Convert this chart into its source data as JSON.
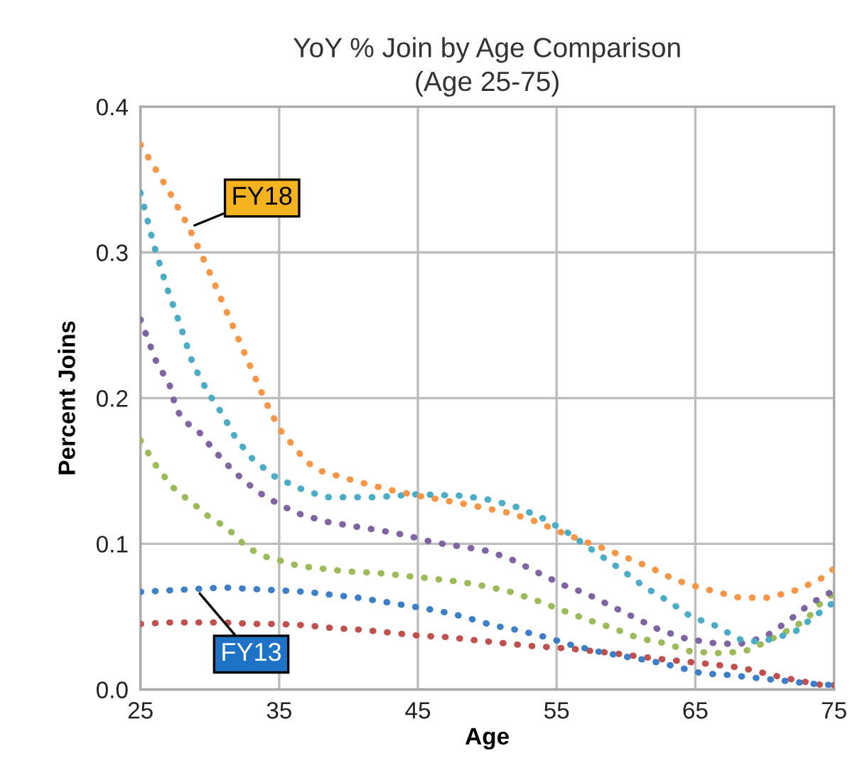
{
  "chart_data": {
    "type": "line",
    "title": "YoY % Join by Age Comparison\n(Age 25-75)",
    "xlabel": "Age",
    "ylabel": "Percent Joins",
    "xlim": [
      25,
      75
    ],
    "xticks": [
      25,
      35,
      45,
      55,
      65,
      75
    ],
    "ylim": [
      0,
      0.4
    ],
    "yticks": [
      {
        "value": 0,
        "label": "0.0"
      },
      0.1,
      0.2,
      0.3,
      0.4
    ],
    "grid": true,
    "legend": false,
    "marker": "none",
    "line_style": "dotted",
    "series": [
      {
        "color": "#c0504d",
        "x": [
          25,
          27,
          29,
          31,
          33,
          35,
          37,
          39,
          41,
          43,
          45,
          47,
          49,
          50,
          53,
          56,
          59,
          62.4,
          65.5,
          68.3,
          71.4,
          74.2,
          75
        ],
        "values": [
          0.045,
          0.046,
          0.046,
          0.046,
          0.045,
          0.045,
          0.044,
          0.042,
          0.041,
          0.039,
          0.037,
          0.036,
          0.034,
          0.033,
          0.03,
          0.028,
          0.025,
          0.021,
          0.018,
          0.015,
          0.008,
          0.003,
          0.003
        ]
      },
      {
        "name": "FY13",
        "color": "#3c7fc8",
        "x": [
          25,
          27,
          29,
          31,
          33,
          35,
          37,
          38.8,
          40.7,
          42.7,
          44.6,
          46.5,
          48.3,
          50.4,
          52.1,
          54.2,
          55.9,
          58,
          59.7,
          61.6,
          63.5,
          65.5,
          67.4,
          69.3,
          71.4,
          73.3,
          75
        ],
        "values": [
          0.067,
          0.068,
          0.069,
          0.07,
          0.069,
          0.068,
          0.067,
          0.065,
          0.063,
          0.06,
          0.057,
          0.054,
          0.05,
          0.044,
          0.041,
          0.036,
          0.031,
          0.026,
          0.023,
          0.02,
          0.016,
          0.011,
          0.01,
          0.008,
          0.006,
          0.004,
          0.003
        ]
      },
      {
        "color": "#9bbb59",
        "x": [
          25,
          26.1,
          27.3,
          28.2,
          29,
          30,
          30.9,
          31.7,
          32.6,
          33.4,
          34.3,
          35.3,
          36.3,
          38,
          40,
          42.1,
          44.1,
          46.1,
          48,
          49.8,
          51.7,
          53.6,
          55.5,
          57.2,
          59.1,
          61,
          62.7,
          64.7,
          66.6,
          68.5,
          69.5,
          71.2,
          73,
          74.2,
          75
        ],
        "values": [
          0.171,
          0.154,
          0.139,
          0.132,
          0.126,
          0.118,
          0.113,
          0.107,
          0.098,
          0.094,
          0.09,
          0.088,
          0.085,
          0.083,
          0.081,
          0.08,
          0.078,
          0.076,
          0.074,
          0.071,
          0.067,
          0.061,
          0.054,
          0.048,
          0.042,
          0.035,
          0.032,
          0.026,
          0.025,
          0.026,
          0.03,
          0.038,
          0.048,
          0.061,
          0.066
        ]
      },
      {
        "color": "#8064a2",
        "x": [
          25,
          26.1,
          27.1,
          27.6,
          28.2,
          29.2,
          30.4,
          31.8,
          33.4,
          35,
          36.6,
          38.5,
          40.4,
          42.4,
          44.1,
          46.1,
          48.2,
          50.1,
          51.8,
          53.7,
          55.4,
          57.1,
          59,
          60.7,
          62.4,
          64.3,
          66.2,
          68.1,
          70,
          71.7,
          73.3,
          75
        ],
        "values": [
          0.254,
          0.226,
          0.209,
          0.192,
          0.184,
          0.177,
          0.163,
          0.149,
          0.136,
          0.127,
          0.12,
          0.115,
          0.112,
          0.109,
          0.106,
          0.101,
          0.098,
          0.095,
          0.089,
          0.08,
          0.072,
          0.066,
          0.057,
          0.049,
          0.041,
          0.035,
          0.032,
          0.031,
          0.036,
          0.047,
          0.059,
          0.068
        ]
      },
      {
        "color": "#4bacc6",
        "x": [
          25,
          26,
          26.9,
          27.9,
          28.8,
          29.8,
          30.9,
          31.9,
          33.1,
          34.7,
          36.5,
          38.3,
          40.2,
          42,
          45,
          48.2,
          50.3,
          52.2,
          53.9,
          55.6,
          58,
          59.7,
          61.4,
          63,
          64.7,
          66.4,
          68.3,
          69.4,
          70.2,
          72.1,
          73.7,
          75
        ],
        "values": [
          0.341,
          0.304,
          0.276,
          0.249,
          0.223,
          0.205,
          0.189,
          0.172,
          0.158,
          0.146,
          0.138,
          0.132,
          0.132,
          0.132,
          0.134,
          0.133,
          0.13,
          0.125,
          0.118,
          0.109,
          0.093,
          0.082,
          0.07,
          0.061,
          0.05,
          0.044,
          0.034,
          0.033,
          0.034,
          0.039,
          0.051,
          0.06
        ]
      },
      {
        "name": "FY18",
        "color": "#f79646",
        "x": [
          25,
          27,
          28.5,
          30,
          32,
          34,
          35,
          37,
          38,
          40.5,
          43,
          45,
          48,
          51.7,
          53.6,
          55.3,
          57.2,
          58.9,
          61.7,
          63.6,
          65.3,
          68.2,
          70.3,
          72.2,
          73.9,
          75
        ],
        "values": [
          0.374,
          0.343,
          0.317,
          0.286,
          0.242,
          0.198,
          0.179,
          0.156,
          0.15,
          0.143,
          0.137,
          0.133,
          0.128,
          0.121,
          0.115,
          0.108,
          0.101,
          0.095,
          0.084,
          0.075,
          0.07,
          0.063,
          0.063,
          0.068,
          0.075,
          0.083
        ]
      }
    ]
  }
}
